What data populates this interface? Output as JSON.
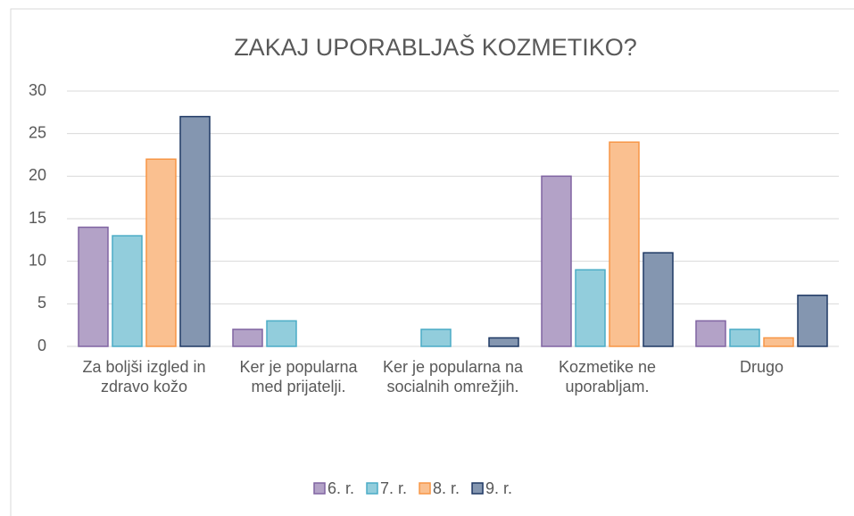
{
  "chart_data": {
    "type": "bar",
    "title": "ZAKAJ UPORABLJAŠ KOZMETIKO?",
    "categories": [
      "Za boljši izgled in zdravo kožo",
      "Ker je popularna med prijatelji.",
      "Ker je popularna na socialnih omrežjih.",
      "Kozmetike ne uporabljam.",
      "Drugo"
    ],
    "series": [
      {
        "name": "6. r.",
        "color": "#b3a2c7",
        "edgecolor": "#8064a2",
        "values": [
          14,
          2,
          0,
          20,
          3
        ]
      },
      {
        "name": "7. r.",
        "color": "#92cddc",
        "edgecolor": "#4bacc6",
        "values": [
          13,
          3,
          2,
          9,
          2
        ]
      },
      {
        "name": "8. r.",
        "color": "#fac090",
        "edgecolor": "#f79646",
        "values": [
          22,
          0,
          0,
          24,
          1
        ]
      },
      {
        "name": "9. r.",
        "color": "#8496b0",
        "edgecolor": "#1f3864",
        "values": [
          27,
          0,
          1,
          11,
          6
        ]
      }
    ],
    "ylim": [
      0,
      30
    ],
    "yticks": [
      0,
      5,
      10,
      15,
      20,
      25,
      30
    ],
    "grid": true,
    "legend": "bottom"
  }
}
